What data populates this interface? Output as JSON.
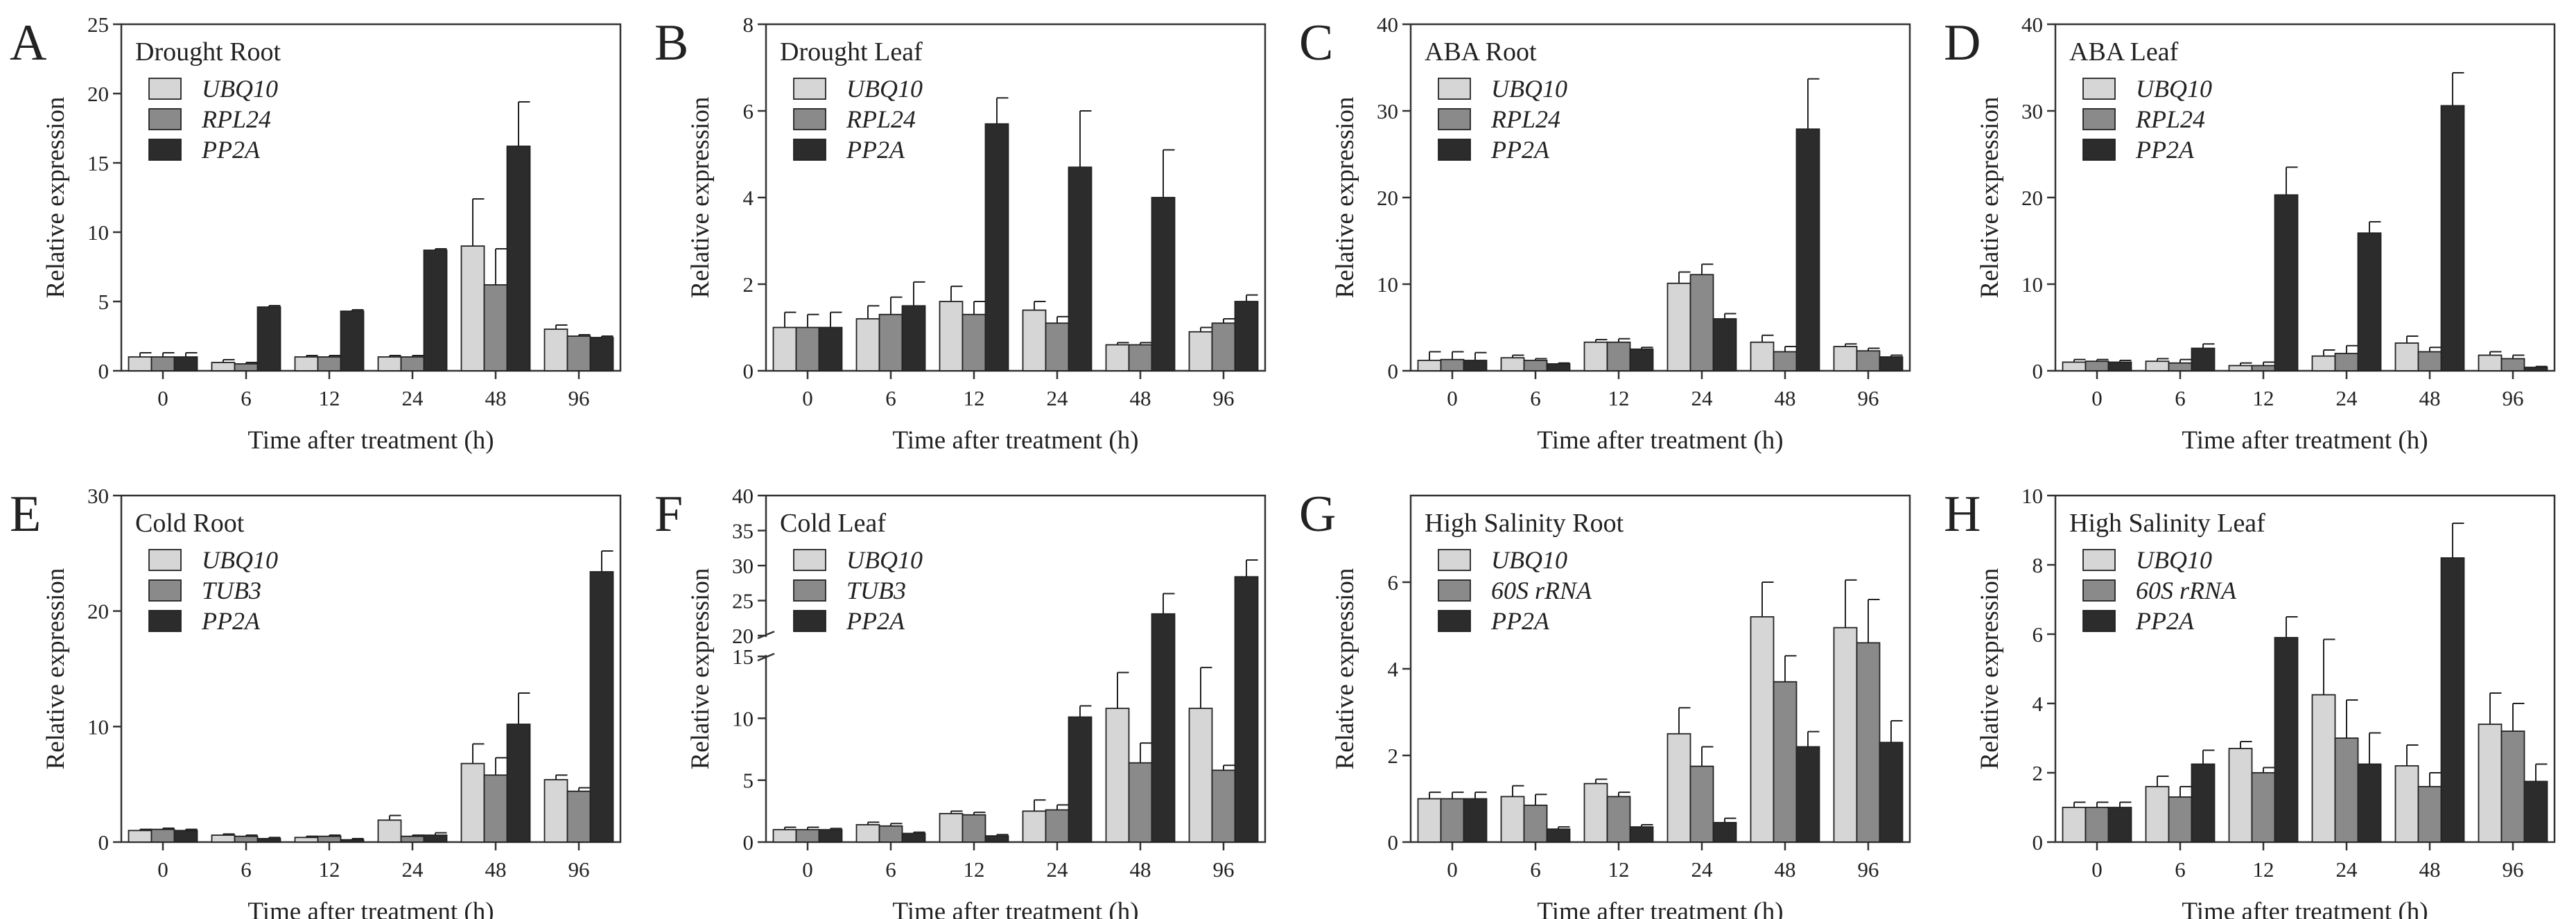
{
  "figure": {
    "colors": {
      "s1": "#d6d6d6",
      "s2": "#8a8a8a",
      "s3": "#2c2c2c",
      "axis": "#333333"
    }
  },
  "chart_data": [
    {
      "letter": "A",
      "type": "bar",
      "title": "Drought Root",
      "xlabel": "Time after treatment (h)",
      "ylabel": "Relative expression",
      "categories": [
        "0",
        "6",
        "12",
        "24",
        "48",
        "96"
      ],
      "ylim": [
        0,
        25
      ],
      "yticks": [
        0,
        5,
        10,
        15,
        20,
        25
      ],
      "ytick_labels": [
        "0",
        "5",
        "10",
        "15",
        "20",
        "25"
      ],
      "series": [
        {
          "name": "UBQ10",
          "values": [
            1.0,
            0.6,
            1.0,
            1.0,
            9.0,
            3.0
          ],
          "errors": [
            0.3,
            0.2,
            0.1,
            0.1,
            3.4,
            0.3
          ]
        },
        {
          "name": "RPL24",
          "values": [
            1.0,
            0.5,
            1.0,
            1.0,
            6.2,
            2.5
          ],
          "errors": [
            0.3,
            0.1,
            0.1,
            0.1,
            2.6,
            0.1
          ]
        },
        {
          "name": "PP2A",
          "values": [
            1.0,
            4.6,
            4.3,
            8.7,
            16.2,
            2.4
          ],
          "errors": [
            0.3,
            0.1,
            0.1,
            0.1,
            3.2,
            0.1
          ]
        }
      ]
    },
    {
      "letter": "B",
      "type": "bar",
      "title": "Drought Leaf",
      "xlabel": "Time after treatment (h)",
      "ylabel": "Relative expression",
      "categories": [
        "0",
        "6",
        "12",
        "24",
        "48",
        "96"
      ],
      "ylim": [
        0,
        8
      ],
      "yticks": [
        0,
        2,
        4,
        6,
        8
      ],
      "ytick_labels": [
        "0",
        "2",
        "4",
        "6",
        "8"
      ],
      "series": [
        {
          "name": "UBQ10",
          "values": [
            1.0,
            1.2,
            1.6,
            1.4,
            0.6,
            0.9
          ],
          "errors": [
            0.35,
            0.3,
            0.35,
            0.2,
            0.05,
            0.1
          ]
        },
        {
          "name": "RPL24",
          "values": [
            1.0,
            1.3,
            1.3,
            1.1,
            0.6,
            1.1
          ],
          "errors": [
            0.3,
            0.4,
            0.3,
            0.15,
            0.05,
            0.1
          ]
        },
        {
          "name": "PP2A",
          "values": [
            1.0,
            1.5,
            5.7,
            4.7,
            4.0,
            1.6
          ],
          "errors": [
            0.35,
            0.55,
            0.6,
            1.3,
            1.1,
            0.15
          ]
        }
      ]
    },
    {
      "letter": "C",
      "type": "bar",
      "title": "ABA Root",
      "xlabel": "Time after treatment (h)",
      "ylabel": "Relative expression",
      "categories": [
        "0",
        "6",
        "12",
        "24",
        "48",
        "96"
      ],
      "ylim": [
        0,
        40
      ],
      "yticks": [
        0,
        10,
        20,
        30,
        40
      ],
      "ytick_labels": [
        "0",
        "10",
        "20",
        "30",
        "40"
      ],
      "series": [
        {
          "name": "UBQ10",
          "values": [
            1.2,
            1.5,
            3.3,
            10.1,
            3.3,
            2.8
          ],
          "errors": [
            1.0,
            0.3,
            0.3,
            1.3,
            0.8,
            0.3
          ]
        },
        {
          "name": "RPL24",
          "values": [
            1.3,
            1.2,
            3.3,
            11.1,
            2.2,
            2.3
          ],
          "errors": [
            0.9,
            0.2,
            0.4,
            1.2,
            0.6,
            0.3
          ]
        },
        {
          "name": "PP2A",
          "values": [
            1.2,
            0.8,
            2.5,
            6.0,
            27.9,
            1.6
          ],
          "errors": [
            0.9,
            0.1,
            0.2,
            0.6,
            5.8,
            0.2
          ]
        }
      ]
    },
    {
      "letter": "D",
      "type": "bar",
      "title": "ABA Leaf",
      "xlabel": "Time after treatment (h)",
      "ylabel": "Relative expression",
      "categories": [
        "0",
        "6",
        "12",
        "24",
        "48",
        "96"
      ],
      "ylim": [
        0,
        40
      ],
      "yticks": [
        0,
        10,
        20,
        30,
        40
      ],
      "ytick_labels": [
        "0",
        "10",
        "20",
        "30",
        "40"
      ],
      "series": [
        {
          "name": "UBQ10",
          "values": [
            1.0,
            1.1,
            0.6,
            1.7,
            3.2,
            1.8
          ],
          "errors": [
            0.3,
            0.3,
            0.3,
            0.7,
            0.8,
            0.4
          ]
        },
        {
          "name": "RPL24",
          "values": [
            1.1,
            0.9,
            0.6,
            2.0,
            2.2,
            1.4
          ],
          "errors": [
            0.2,
            0.4,
            0.4,
            0.9,
            0.5,
            0.4
          ]
        },
        {
          "name": "PP2A",
          "values": [
            1.0,
            2.6,
            20.3,
            15.9,
            30.6,
            0.4
          ],
          "errors": [
            0.2,
            0.5,
            3.2,
            1.3,
            3.8,
            0.1
          ]
        }
      ]
    },
    {
      "letter": "E",
      "type": "bar",
      "title": "Cold Root",
      "xlabel": "Time after treatment (h)",
      "ylabel": "Relative expression",
      "categories": [
        "0",
        "6",
        "12",
        "24",
        "48",
        "96"
      ],
      "ylim": [
        0,
        30
      ],
      "yticks": [
        0,
        10,
        20,
        30
      ],
      "ytick_labels": [
        "0",
        "10",
        "20",
        "30"
      ],
      "series": [
        {
          "name": "UBQ10",
          "values": [
            1.0,
            0.6,
            0.4,
            1.9,
            6.8,
            5.4
          ],
          "errors": [
            0.1,
            0.1,
            0.1,
            0.4,
            1.7,
            0.4
          ]
        },
        {
          "name": "TUB3",
          "values": [
            1.1,
            0.5,
            0.5,
            0.5,
            5.8,
            4.4
          ],
          "errors": [
            0.1,
            0.1,
            0.1,
            0.1,
            1.5,
            0.3
          ]
        },
        {
          "name": "PP2A",
          "values": [
            1.0,
            0.3,
            0.2,
            0.6,
            10.2,
            23.4
          ],
          "errors": [
            0.1,
            0.1,
            0.1,
            0.2,
            2.7,
            1.8
          ]
        }
      ]
    },
    {
      "letter": "F",
      "type": "bar",
      "title": "Cold Leaf",
      "broken_axis": true,
      "xlabel": "Time after treatment (h)",
      "ylabel": "Relative expression",
      "categories": [
        "0",
        "6",
        "12",
        "24",
        "48",
        "96"
      ],
      "ylim": [
        0,
        40
      ],
      "yticks": [
        0,
        5,
        10,
        15,
        20,
        25,
        30,
        35,
        40
      ],
      "ytick_labels": [
        "0",
        "5",
        "10",
        "15",
        "20",
        "25",
        "30",
        "35",
        "40"
      ],
      "series": [
        {
          "name": "UBQ10",
          "values": [
            1.0,
            1.4,
            2.3,
            2.5,
            10.8,
            10.8
          ],
          "errors": [
            0.2,
            0.2,
            0.2,
            0.9,
            2.9,
            3.3
          ]
        },
        {
          "name": "TUB3",
          "values": [
            1.0,
            1.3,
            2.2,
            2.6,
            6.4,
            5.8
          ],
          "errors": [
            0.2,
            0.2,
            0.2,
            0.4,
            1.6,
            0.4
          ]
        },
        {
          "name": "PP2A",
          "values": [
            1.0,
            0.7,
            0.5,
            10.1,
            23.1,
            28.4
          ],
          "errors": [
            0.1,
            0.1,
            0.1,
            0.9,
            2.9,
            2.4
          ]
        }
      ]
    },
    {
      "letter": "G",
      "type": "bar",
      "title": "High Salinity Root",
      "xlabel": "Time after treatment (h)",
      "ylabel": "Relative expression",
      "categories": [
        "0",
        "6",
        "12",
        "24",
        "48",
        "96"
      ],
      "ylim": [
        0,
        8
      ],
      "yticks": [
        0,
        2,
        4,
        6
      ],
      "ytick_labels": [
        "0",
        "2",
        "4",
        "6"
      ],
      "series": [
        {
          "name": "UBQ10",
          "values": [
            1.0,
            1.05,
            1.35,
            2.5,
            5.2,
            4.95
          ],
          "errors": [
            0.15,
            0.25,
            0.1,
            0.6,
            0.8,
            1.1
          ]
        },
        {
          "name": "60S rRNA",
          "values": [
            1.0,
            0.85,
            1.05,
            1.75,
            3.7,
            4.6
          ],
          "errors": [
            0.15,
            0.25,
            0.1,
            0.45,
            0.6,
            1.0
          ]
        },
        {
          "name": "PP2A",
          "values": [
            1.0,
            0.3,
            0.35,
            0.45,
            2.2,
            2.3
          ],
          "errors": [
            0.15,
            0.05,
            0.05,
            0.1,
            0.35,
            0.5
          ]
        }
      ]
    },
    {
      "letter": "H",
      "type": "bar",
      "title": "High Salinity Leaf",
      "xlabel": "Time after treatment (h)",
      "ylabel": "Relative expression",
      "categories": [
        "0",
        "6",
        "12",
        "24",
        "48",
        "96"
      ],
      "ylim": [
        0,
        10
      ],
      "yticks": [
        0,
        2,
        4,
        6,
        8,
        10
      ],
      "ytick_labels": [
        "0",
        "2",
        "4",
        "6",
        "8",
        "10"
      ],
      "series": [
        {
          "name": "UBQ10",
          "values": [
            1.0,
            1.6,
            2.7,
            4.25,
            2.2,
            3.4
          ],
          "errors": [
            0.15,
            0.3,
            0.2,
            1.6,
            0.6,
            0.9
          ]
        },
        {
          "name": "60S rRNA",
          "values": [
            1.0,
            1.3,
            2.0,
            3.0,
            1.6,
            3.2
          ],
          "errors": [
            0.15,
            0.3,
            0.15,
            1.1,
            0.4,
            0.8
          ]
        },
        {
          "name": "PP2A",
          "values": [
            1.0,
            2.25,
            5.9,
            2.25,
            8.2,
            1.75
          ],
          "errors": [
            0.15,
            0.4,
            0.6,
            0.9,
            1.0,
            0.5
          ]
        }
      ]
    }
  ]
}
